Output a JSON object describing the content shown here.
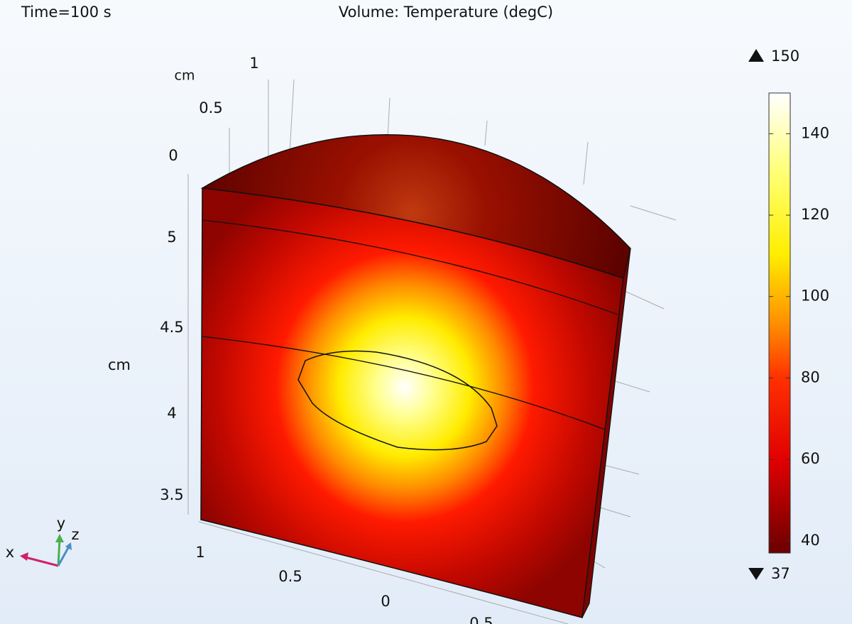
{
  "header": {
    "time": "Time=100 s",
    "title": "Volume: Temperature (degC)"
  },
  "axes": {
    "vertical_unit": "cm",
    "vertical_ticks": [
      "5",
      "4.5",
      "4",
      "3.5"
    ],
    "depth_unit": "cm",
    "depth_ticks": [
      "1",
      "0.5",
      "0"
    ],
    "horizontal_ticks": [
      "1",
      "0.5",
      "0",
      "0.5"
    ]
  },
  "triad": {
    "x": "x",
    "y": "y",
    "z": "z"
  },
  "colorbar": {
    "max": 150,
    "min": 37,
    "ticks": [
      40,
      60,
      80,
      100,
      120,
      140
    ]
  }
}
